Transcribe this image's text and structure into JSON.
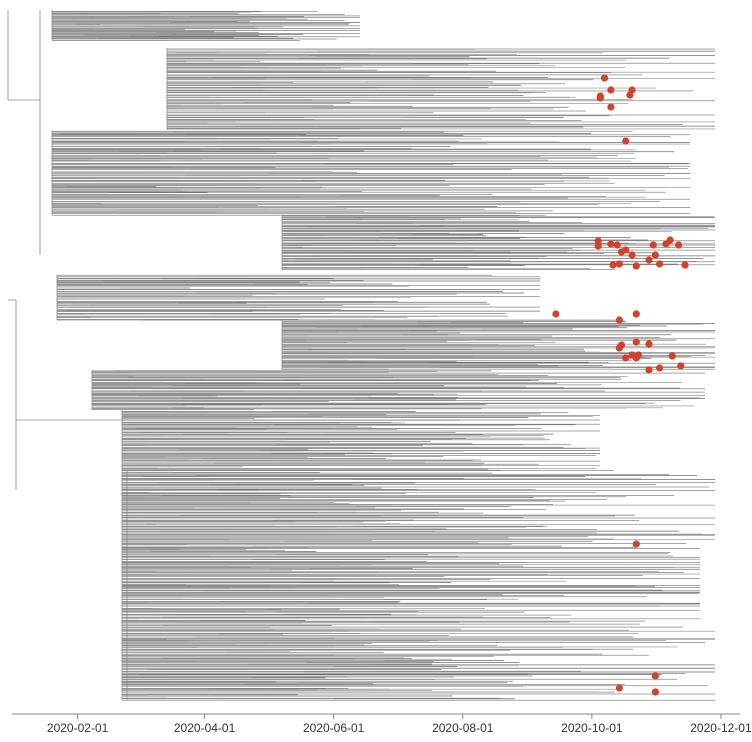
{
  "chart_data": {
    "type": "scatter",
    "subtype": "time-scaled phylogenetic tree",
    "title": "",
    "xlabel": "",
    "ylabel": "",
    "x_axis": {
      "type": "date",
      "ticks": [
        "2020-02-01",
        "2020-04-01",
        "2020-06-01",
        "2020-08-01",
        "2020-10-01",
        "2020-12-01"
      ],
      "xlim": [
        "2020-01-01",
        "2020-12-10"
      ]
    },
    "grid": false,
    "legend": "none",
    "colors": {
      "branch": "#8a8a8a",
      "dense_branch": "#6f6f6f",
      "highlight": "#d2412c",
      "axis": "#888888"
    },
    "highlighted_tips": {
      "description": "red circles mark highlighted sampled sequences",
      "dates": [
        "2020-10-07",
        "2020-10-05",
        "2020-10-10",
        "2020-10-05",
        "2020-10-20",
        "2020-10-19",
        "2020-10-10",
        "2020-10-17",
        "2020-10-13",
        "2020-10-17",
        "2020-10-04",
        "2020-10-04",
        "2020-10-10",
        "2020-10-20",
        "2020-10-31",
        "2020-10-30",
        "2020-11-05",
        "2020-11-11",
        "2020-11-07",
        "2020-10-15",
        "2020-10-11",
        "2020-10-14",
        "2020-10-22",
        "2020-11-02",
        "2020-10-28",
        "2020-11-14",
        "2020-11-14",
        "2020-09-14",
        "2020-10-22",
        "2020-10-14",
        "2020-10-14",
        "2020-10-17",
        "2020-10-15",
        "2020-10-20",
        "2020-10-23",
        "2020-10-22",
        "2020-10-28",
        "2020-11-12",
        "2020-11-02",
        "2020-11-08",
        "2020-10-22",
        "2020-10-28",
        "2020-10-22",
        "2020-10-31",
        "2020-10-14",
        "2020-10-31"
      ]
    }
  }
}
